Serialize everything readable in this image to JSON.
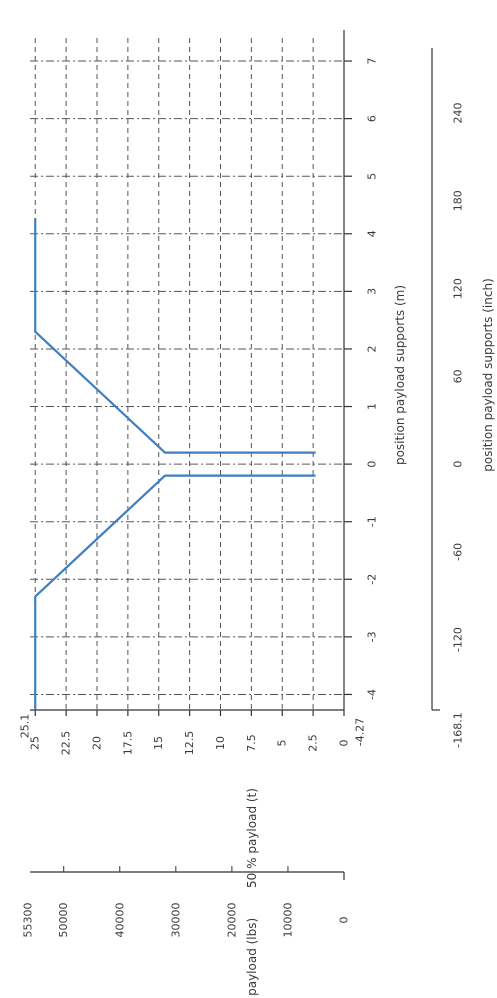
{
  "chart_data": {
    "type": "line",
    "orientation": "rotated-90-clockwise",
    "x_axis_primary": {
      "label": "position payload supports (m)",
      "ticks": [
        -4,
        -3,
        -2,
        -1,
        0,
        1,
        2,
        3,
        4,
        5,
        6,
        7
      ],
      "tick_labels": [
        "-4",
        "-3",
        "-2",
        "-1",
        "0",
        "1",
        "2",
        "3",
        "4",
        "5",
        "6",
        "7"
      ],
      "min_label": "-4.27",
      "range": [
        -4.27,
        7.4
      ]
    },
    "x_axis_secondary": {
      "label": "position payload supports (inch)",
      "ticks": [
        -120,
        -60,
        0,
        60,
        120,
        180,
        240
      ],
      "tick_labels": [
        "-120",
        "-60",
        "0",
        "60",
        "120",
        "180",
        "240"
      ],
      "min_label": "-168.1",
      "range": [
        -168.1,
        291.3
      ]
    },
    "y_axis_primary": {
      "label": "50 % payload (t)",
      "ticks": [
        0,
        2.5,
        5,
        7.5,
        10,
        12.5,
        15,
        17.5,
        20,
        22.5,
        25
      ],
      "tick_labels": [
        "0",
        "2.5",
        "5",
        "7.5",
        "10",
        "12.5",
        "15",
        "17.5",
        "20",
        "22.5",
        "25"
      ],
      "max_label": "25.1",
      "range": [
        0,
        25.1
      ]
    },
    "y_axis_secondary": {
      "label": "50 % payload (lbs)",
      "ticks": [
        0,
        10000,
        20000,
        30000,
        40000,
        50000
      ],
      "tick_labels": [
        "0",
        "10000",
        "20000",
        "30000",
        "40000",
        "50000"
      ],
      "max_label": "55300",
      "range": [
        0,
        55300
      ]
    },
    "grid": true,
    "series": [
      {
        "color": "#3f7fc1",
        "x": [
          -4.27,
          -2.3,
          -0.2,
          -0.2
        ],
        "y": [
          25,
          25,
          14.5,
          2.3
        ]
      },
      {
        "color": "#3f7fc1",
        "x": [
          0.2,
          0.2,
          2.3,
          4.27
        ],
        "y": [
          2.3,
          14.5,
          25,
          25
        ]
      }
    ]
  }
}
